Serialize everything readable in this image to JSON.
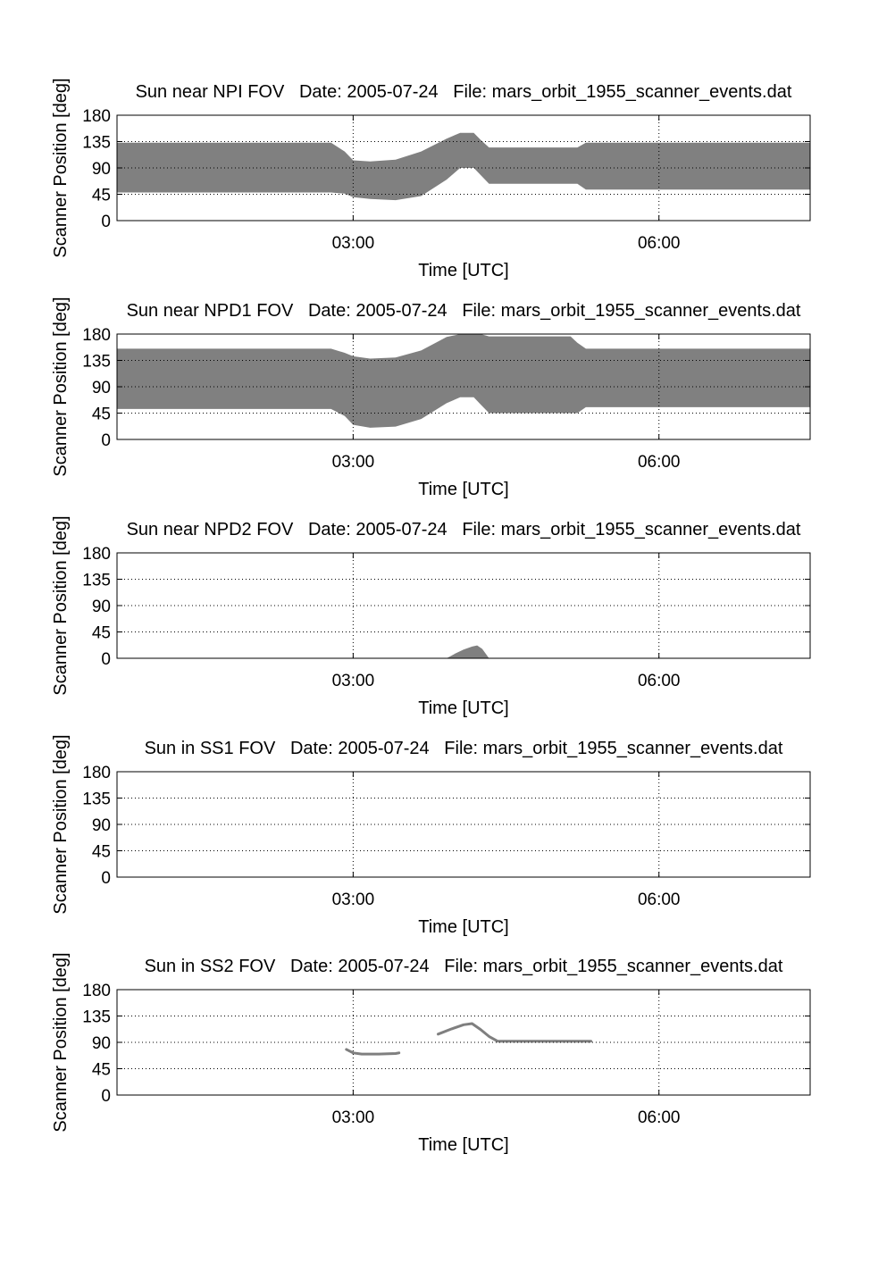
{
  "page": {
    "background": "#ffffff"
  },
  "colors": {
    "fill": "#808080",
    "line": "#7f7f7f",
    "axis": "#000000",
    "grid": "#000000"
  },
  "chart_data": [
    {
      "type": "area",
      "title": "Sun near NPI FOV   Date: 2005-07-24   File: mars_orbit_1955_scanner_events.dat",
      "xlabel": "Time [UTC]",
      "ylabel": "Scanner Position [deg]",
      "xlim": [
        "00:41",
        "07:29"
      ],
      "ylim": [
        0,
        180
      ],
      "xticks": [
        "03:00",
        "06:00"
      ],
      "yticks": [
        0,
        45,
        90,
        135,
        180
      ],
      "grid": true,
      "band": {
        "x": [
          "00:41",
          "02:47",
          "02:55",
          "03:00",
          "03:10",
          "03:25",
          "03:40",
          "03:55",
          "04:03",
          "04:11",
          "04:15",
          "04:20",
          "04:25",
          "04:30",
          "05:12",
          "05:17",
          "05:25",
          "07:29"
        ],
        "upper": [
          133,
          133,
          118,
          103,
          101,
          104,
          118,
          140,
          150,
          150,
          138,
          125,
          125,
          125,
          125,
          133,
          133,
          133
        ],
        "lower": [
          48,
          48,
          46,
          40,
          37,
          35,
          42,
          70,
          90,
          90,
          78,
          63,
          63,
          63,
          63,
          53,
          53,
          53
        ]
      }
    },
    {
      "type": "area",
      "title": "Sun near NPD1 FOV   Date: 2005-07-24   File: mars_orbit_1955_scanner_events.dat",
      "xlabel": "Time [UTC]",
      "ylabel": "Scanner Position [deg]",
      "xlim": [
        "00:41",
        "07:29"
      ],
      "ylim": [
        0,
        180
      ],
      "xticks": [
        "03:00",
        "06:00"
      ],
      "yticks": [
        0,
        45,
        90,
        135,
        180
      ],
      "grid": true,
      "band": {
        "x": [
          "00:41",
          "02:47",
          "02:55",
          "03:00",
          "03:10",
          "03:25",
          "03:40",
          "03:55",
          "04:03",
          "04:11",
          "04:15",
          "04:20",
          "04:25",
          "04:30",
          "05:08",
          "05:12",
          "05:17",
          "05:25",
          "07:29"
        ],
        "upper": [
          155,
          155,
          148,
          142,
          138,
          140,
          152,
          175,
          180,
          180,
          180,
          176,
          176,
          176,
          176,
          165,
          155,
          155,
          155
        ],
        "lower": [
          52,
          52,
          40,
          25,
          20,
          22,
          35,
          62,
          72,
          72,
          60,
          45,
          45,
          45,
          45,
          45,
          55,
          55,
          55
        ]
      }
    },
    {
      "type": "area",
      "title": "Sun near NPD2 FOV   Date: 2005-07-24   File: mars_orbit_1955_scanner_events.dat",
      "xlabel": "Time [UTC]",
      "ylabel": "Scanner Position [deg]",
      "xlim": [
        "00:41",
        "07:29"
      ],
      "ylim": [
        0,
        180
      ],
      "xticks": [
        "03:00",
        "06:00"
      ],
      "yticks": [
        0,
        45,
        90,
        135,
        180
      ],
      "grid": true,
      "band": {
        "x": [
          "03:55",
          "04:00",
          "04:05",
          "04:10",
          "04:13",
          "04:16",
          "04:20"
        ],
        "upper": [
          0,
          8,
          15,
          20,
          22,
          16,
          0
        ],
        "lower": [
          0,
          0,
          0,
          0,
          0,
          0,
          0
        ]
      }
    },
    {
      "type": "line",
      "title": "Sun in SS1 FOV   Date: 2005-07-24   File: mars_orbit_1955_scanner_events.dat",
      "xlabel": "Time [UTC]",
      "ylabel": "Scanner Position [deg]",
      "xlim": [
        "00:41",
        "07:29"
      ],
      "ylim": [
        0,
        180
      ],
      "xticks": [
        "03:00",
        "06:00"
      ],
      "yticks": [
        0,
        45,
        90,
        135,
        180
      ],
      "grid": true,
      "series": []
    },
    {
      "type": "line",
      "title": "Sun in SS2 FOV   Date: 2005-07-24   File: mars_orbit_1955_scanner_events.dat",
      "xlabel": "Time [UTC]",
      "ylabel": "Scanner Position [deg]",
      "xlim": [
        "00:41",
        "07:29"
      ],
      "ylim": [
        0,
        180
      ],
      "xticks": [
        "03:00",
        "06:00"
      ],
      "yticks": [
        0,
        45,
        90,
        135,
        180
      ],
      "grid": true,
      "series": [
        {
          "x": [
            "02:56",
            "03:00",
            "03:05",
            "03:15",
            "03:25",
            "03:27"
          ],
          "y": [
            78,
            72,
            70,
            70,
            71,
            72
          ]
        },
        {
          "x": [
            "03:50",
            "03:58",
            "04:05",
            "04:10",
            "04:15",
            "04:20",
            "04:25",
            "04:30",
            "05:00",
            "05:15",
            "05:20"
          ],
          "y": [
            104,
            113,
            120,
            122,
            112,
            100,
            92,
            92,
            92,
            92,
            92
          ]
        }
      ]
    }
  ]
}
